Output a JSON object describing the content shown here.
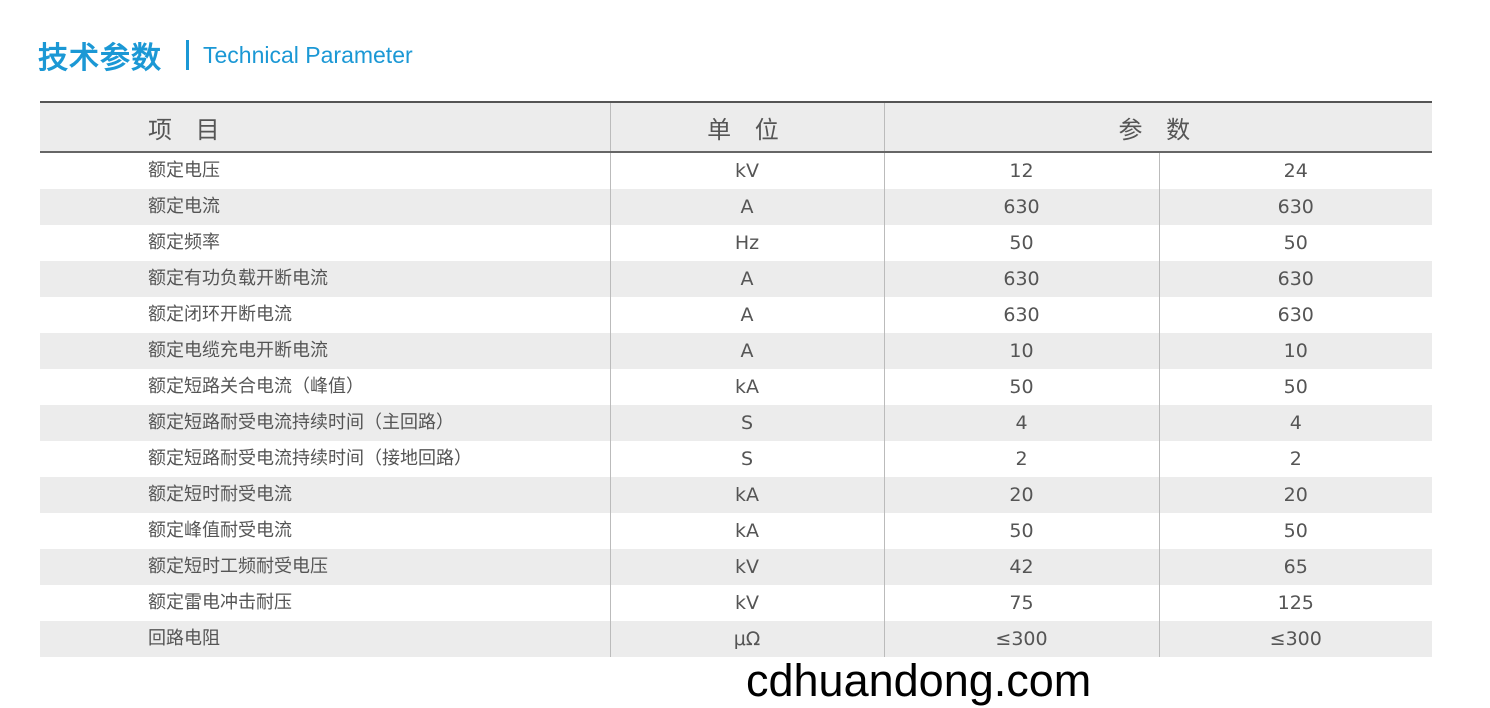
{
  "title": {
    "cn": "技术参数",
    "en": "Technical Parameter",
    "color": "#1b98d5"
  },
  "headers": {
    "item": "项 目",
    "unit": "单 位",
    "param": "参 数"
  },
  "rows": [
    {
      "item": "额定电压",
      "unit": "kV",
      "v1": "12",
      "v2": "24"
    },
    {
      "item": "额定电流",
      "unit": "A",
      "v1": "630",
      "v2": "630"
    },
    {
      "item": "额定频率",
      "unit": "Hz",
      "v1": "50",
      "v2": "50"
    },
    {
      "item": "额定有功负载开断电流",
      "unit": "A",
      "v1": "630",
      "v2": "630"
    },
    {
      "item": "额定闭环开断电流",
      "unit": "A",
      "v1": "630",
      "v2": "630"
    },
    {
      "item": "额定电缆充电开断电流",
      "unit": "A",
      "v1": "10",
      "v2": "10"
    },
    {
      "item": "额定短路关合电流（峰值）",
      "unit": "kA",
      "v1": "50",
      "v2": "50"
    },
    {
      "item": "额定短路耐受电流持续时间（主回路）",
      "unit": "S",
      "v1": "4",
      "v2": "4"
    },
    {
      "item": "额定短路耐受电流持续时间（接地回路）",
      "unit": "S",
      "v1": "2",
      "v2": "2"
    },
    {
      "item": "额定短时耐受电流",
      "unit": "kA",
      "v1": "20",
      "v2": "20"
    },
    {
      "item": "额定峰值耐受电流",
      "unit": "kA",
      "v1": "50",
      "v2": "50"
    },
    {
      "item": "额定短时工频耐受电压",
      "unit": "kV",
      "v1": "42",
      "v2": "65"
    },
    {
      "item": "额定雷电冲击耐压",
      "unit": "kV",
      "v1": "75",
      "v2": "125"
    },
    {
      "item": "回路电阻",
      "unit": "μΩ",
      "v1": "≤300",
      "v2": "≤300"
    }
  ],
  "watermark": "cdhuandong.com"
}
